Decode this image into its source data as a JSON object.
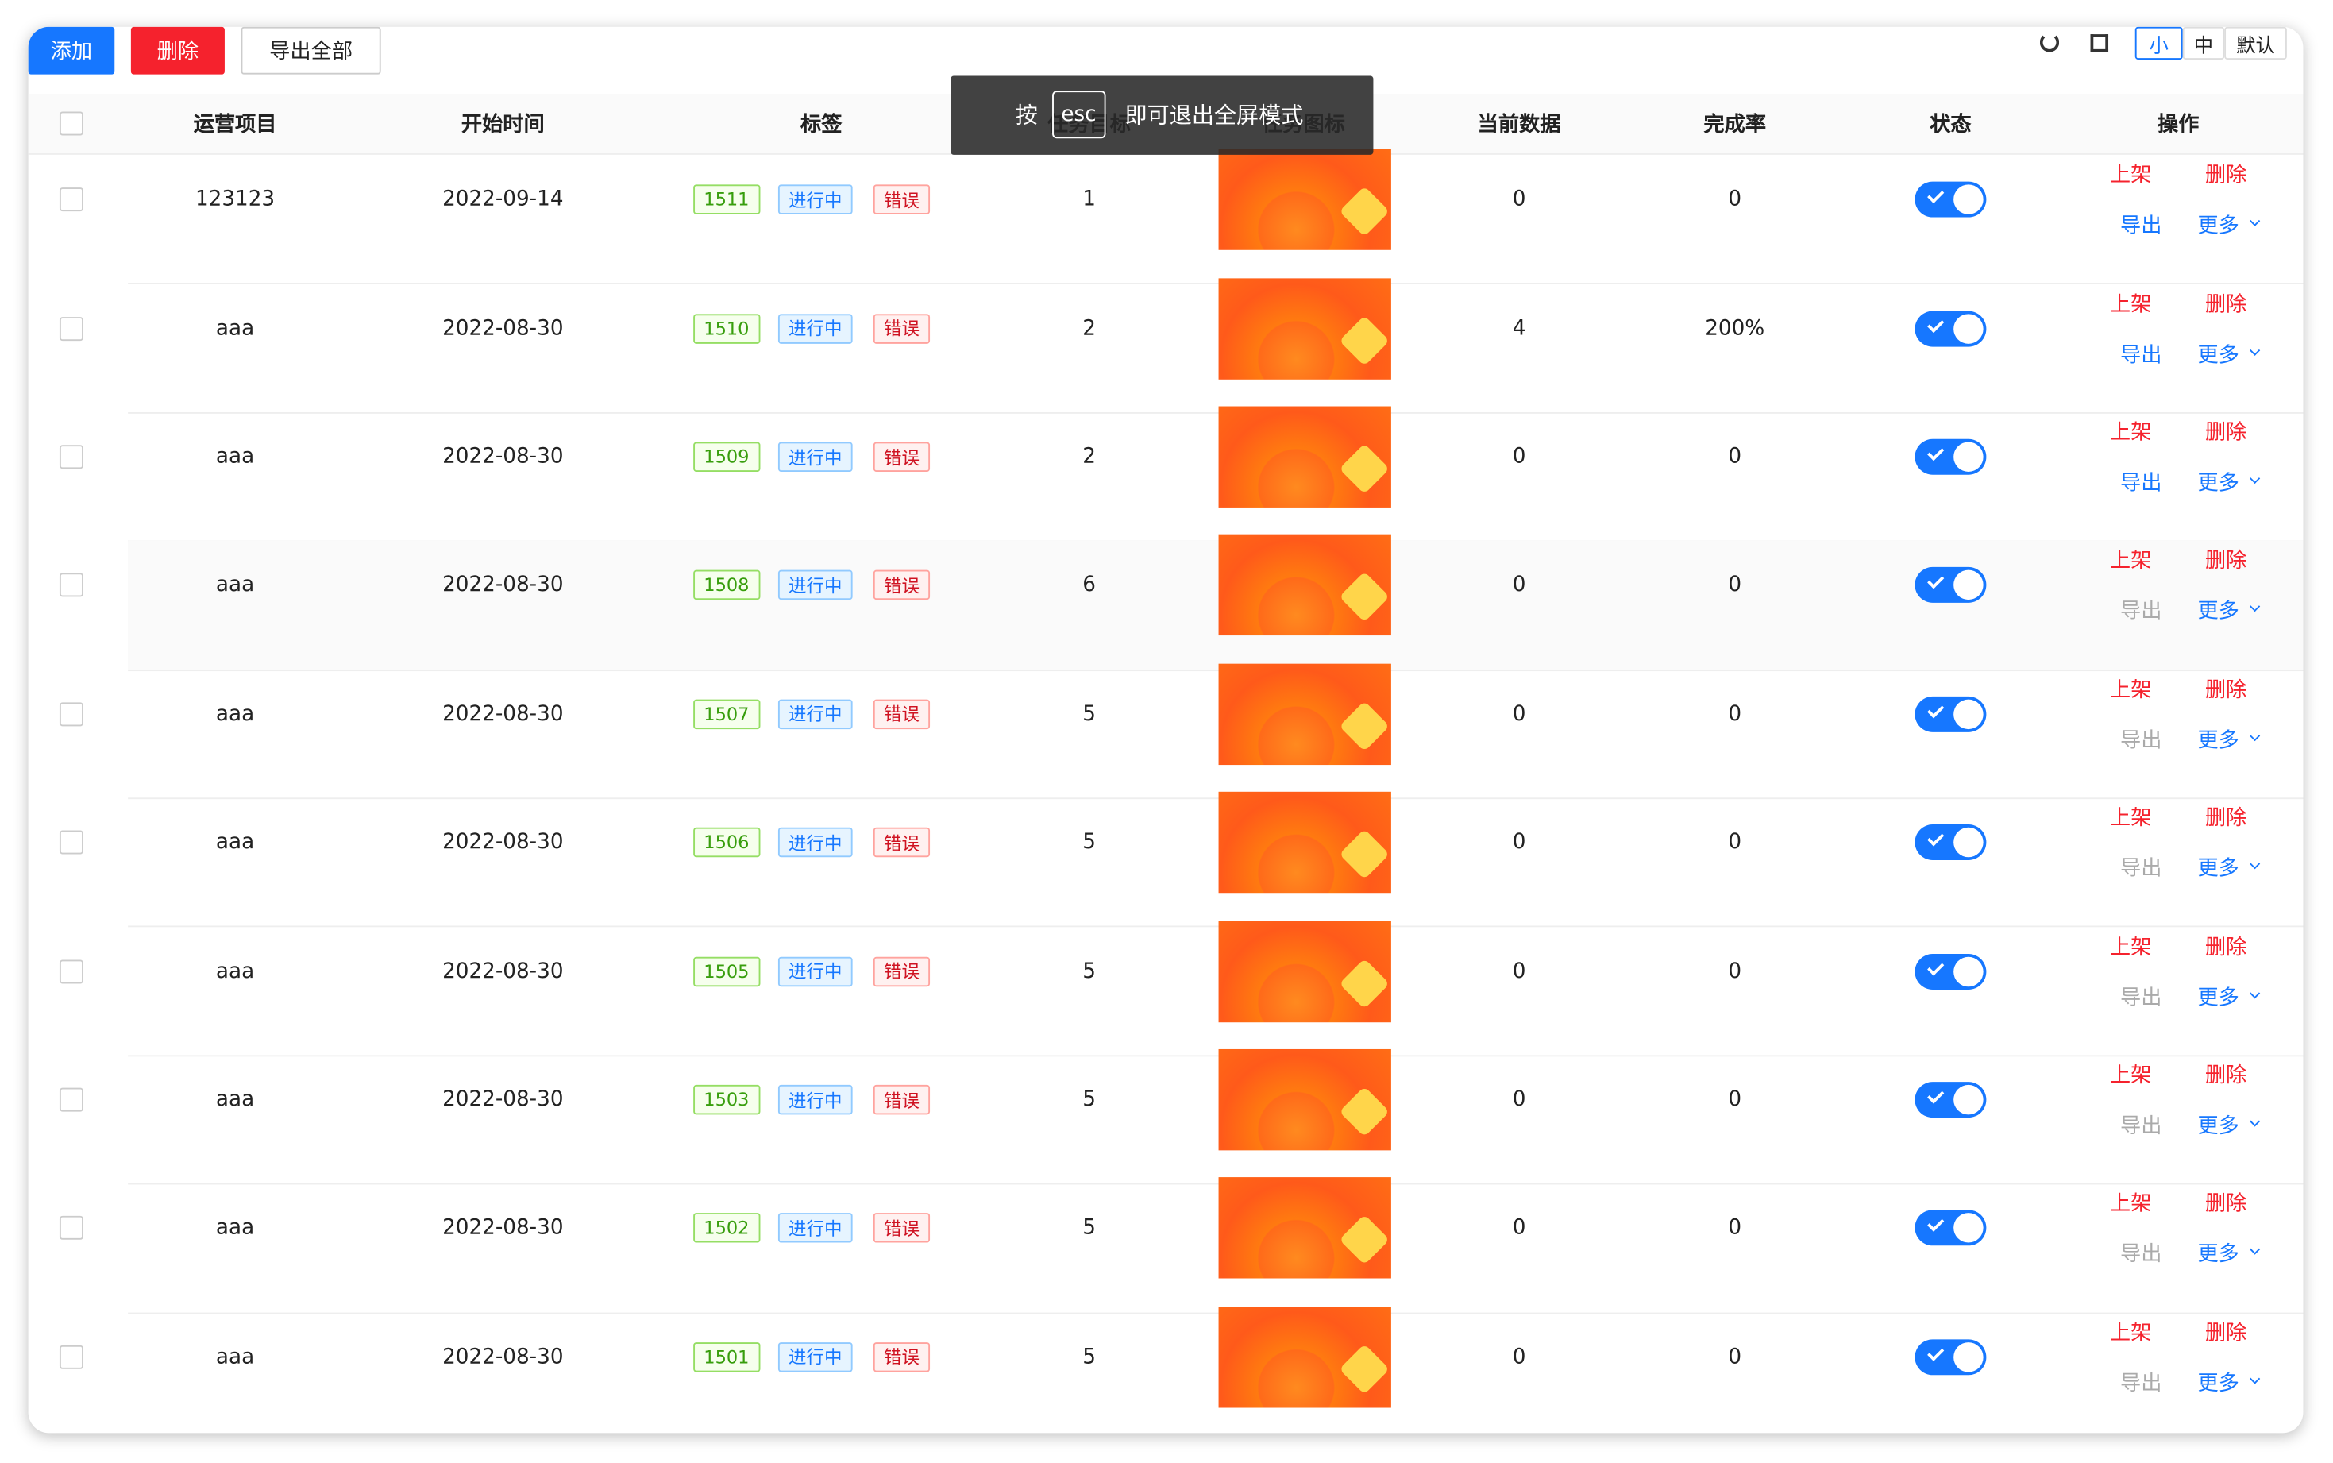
{
  "toolbar": {
    "buttons": [
      "添加",
      "删除",
      "导出全部"
    ],
    "sizes": [
      "小",
      "中",
      "默认"
    ]
  },
  "overlay": {
    "prefix": "按",
    "key": "esc",
    "suffix": "即可退出全屏模式"
  },
  "table": {
    "headers": [
      "运营项目",
      "开始时间",
      "标签",
      "任务目标",
      "任务图标",
      "当前数据",
      "完成率",
      "状态",
      "操作"
    ],
    "rows": [
      {
        "project": "123123",
        "date": "2022-09-14",
        "tags": [
          "1511",
          "进行中",
          "错误"
        ],
        "target": "1",
        "current": "0",
        "rate": "0",
        "actions": [
          "上架",
          "删除",
          "导出",
          "更多"
        ],
        "export_disabled": false
      },
      {
        "project": "aaa",
        "date": "2022-08-30",
        "tags": [
          "1510",
          "进行中",
          "错误"
        ],
        "target": "2",
        "current": "4",
        "rate": "200%",
        "actions": [
          "上架",
          "删除",
          "导出",
          "更多"
        ],
        "export_disabled": false
      },
      {
        "project": "aaa",
        "date": "2022-08-30",
        "tags": [
          "1509",
          "进行中",
          "错误"
        ],
        "target": "2",
        "current": "0",
        "rate": "0",
        "actions": [
          "上架",
          "删除",
          "导出",
          "更多"
        ],
        "export_disabled": false
      },
      {
        "project": "aaa",
        "date": "2022-08-30",
        "tags": [
          "1508",
          "进行中",
          "错误"
        ],
        "target": "6",
        "current": "0",
        "rate": "0",
        "actions": [
          "上架",
          "删除",
          "导出",
          "更多"
        ],
        "export_disabled": true
      },
      {
        "project": "aaa",
        "date": "2022-08-30",
        "tags": [
          "1507",
          "进行中",
          "错误"
        ],
        "target": "5",
        "current": "0",
        "rate": "0",
        "actions": [
          "上架",
          "删除",
          "导出",
          "更多"
        ],
        "export_disabled": true
      },
      {
        "project": "aaa",
        "date": "2022-08-30",
        "tags": [
          "1506",
          "进行中",
          "错误"
        ],
        "target": "5",
        "current": "0",
        "rate": "0",
        "actions": [
          "上架",
          "删除",
          "导出",
          "更多"
        ],
        "export_disabled": true
      },
      {
        "project": "aaa",
        "date": "2022-08-30",
        "tags": [
          "1505",
          "进行中",
          "错误"
        ],
        "target": "5",
        "current": "0",
        "rate": "0",
        "actions": [
          "上架",
          "删除",
          "导出",
          "更多"
        ],
        "export_disabled": true
      },
      {
        "project": "aaa",
        "date": "2022-08-30",
        "tags": [
          "1503",
          "进行中",
          "错误"
        ],
        "target": "5",
        "current": "0",
        "rate": "0",
        "actions": [
          "上架",
          "删除",
          "导出",
          "更多"
        ],
        "export_disabled": true
      },
      {
        "project": "aaa",
        "date": "2022-08-30",
        "tags": [
          "1502",
          "进行中",
          "错误"
        ],
        "target": "5",
        "current": "0",
        "rate": "0",
        "actions": [
          "上架",
          "删除",
          "导出",
          "更多"
        ],
        "export_disabled": true
      },
      {
        "project": "aaa",
        "date": "2022-08-30",
        "tags": [
          "1501",
          "进行中",
          "错误"
        ],
        "target": "5",
        "current": "0",
        "rate": "0",
        "actions": [
          "上架",
          "删除",
          "导出",
          "更多"
        ],
        "export_disabled": true
      }
    ]
  }
}
